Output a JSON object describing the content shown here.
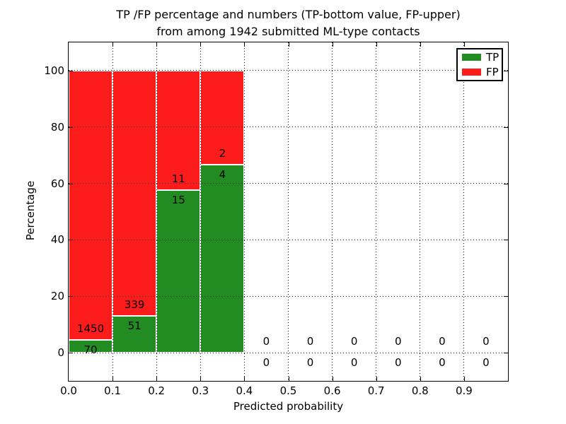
{
  "figure": {
    "title_line1": "TP /FP percentage and numbers (TP-bottom value, FP-upper)",
    "title_line2": "from among 1942 submitted ML-type contacts",
    "xlabel": "Predicted probability",
    "ylabel": "Percentage"
  },
  "legend": {
    "items": [
      {
        "label": "TP",
        "color": "#228c22"
      },
      {
        "label": "FP",
        "color": "#fc1c1c"
      }
    ]
  },
  "chart_data": {
    "type": "bar",
    "stacked": true,
    "title": "TP /FP percentage and numbers (TP-bottom value, FP-upper)\nfrom among 1942 submitted ML-type contacts",
    "xlabel": "Predicted probability",
    "ylabel": "Percentage",
    "total_submitted": 1942,
    "xlim": [
      0.0,
      1.0
    ],
    "ylim": [
      -10,
      110
    ],
    "xticks": [
      0.0,
      0.1,
      0.2,
      0.3,
      0.4,
      0.5,
      0.6,
      0.7,
      0.8,
      0.9
    ],
    "xtick_labels": [
      "0.0",
      "0.1",
      "0.2",
      "0.3",
      "0.4",
      "0.5",
      "0.6",
      "0.7",
      "0.8",
      "0.9"
    ],
    "yticks": [
      0,
      20,
      40,
      60,
      80,
      100
    ],
    "ytick_labels": [
      "0",
      "20",
      "40",
      "60",
      "80",
      "100"
    ],
    "grid": true,
    "grid_style": "dotted",
    "legend_position": "upper right",
    "bin_width": 0.1,
    "bin_centers": [
      0.05,
      0.15,
      0.25,
      0.35,
      0.45,
      0.55,
      0.65,
      0.75,
      0.85,
      0.95
    ],
    "series": [
      {
        "name": "TP",
        "color": "#228c22",
        "counts": [
          70,
          51,
          15,
          4,
          0,
          0,
          0,
          0,
          0,
          0
        ],
        "pct": [
          4.6,
          13.1,
          57.7,
          66.7,
          0,
          0,
          0,
          0,
          0,
          0
        ]
      },
      {
        "name": "FP",
        "color": "#fc1c1c",
        "counts": [
          1450,
          339,
          11,
          2,
          0,
          0,
          0,
          0,
          0,
          0
        ],
        "pct": [
          95.4,
          86.9,
          42.3,
          33.3,
          0,
          0,
          0,
          0,
          0,
          0
        ]
      }
    ]
  }
}
